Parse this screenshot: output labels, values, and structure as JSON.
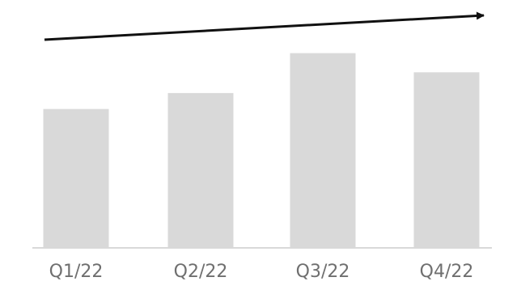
{
  "chart_data": {
    "type": "bar",
    "categories": [
      "Q1/22",
      "Q2/22",
      "Q3/22",
      "Q4/22"
    ],
    "values": [
      174,
      194,
      244,
      220
    ],
    "ylim": [
      0,
      270
    ],
    "grid": false,
    "colors": {
      "bar": "#d9d9d9",
      "baseline": "#d9d9d9",
      "trend_arrow": "#111111",
      "label": "#6f6f6f"
    },
    "annotations": [
      {
        "type": "trend-arrow",
        "direction": "up"
      }
    ]
  }
}
